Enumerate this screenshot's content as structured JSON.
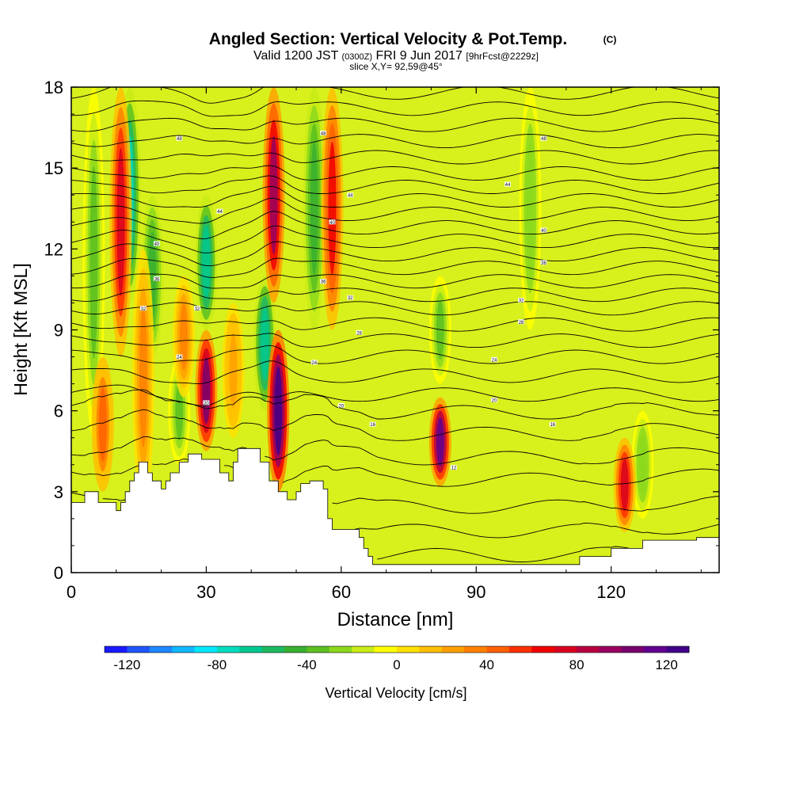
{
  "chart_data": {
    "type": "heatmap",
    "title": "Angled Section: Vertical Velocity & Pot.Temp.",
    "title_unit": "(C)",
    "subtitle": {
      "valid": "Valid 1200 JST",
      "zulu": "(0300Z)",
      "date": "FRI 9 Jun 2017",
      "forecast": "[9hrFcst@2229z]"
    },
    "slice_text": "slice X,Y= 92,59@45°",
    "xlabel": "Distance [nm]",
    "ylabel": "Height [Kft MSL]",
    "xlim": [
      0,
      144
    ],
    "ylim": [
      0,
      18
    ],
    "x_ticks": [
      0,
      30,
      60,
      90,
      120
    ],
    "x_tick_labels": [
      "0",
      "30",
      "60",
      "90",
      "120"
    ],
    "y_ticks": [
      0,
      3,
      6,
      9,
      12,
      15,
      18
    ],
    "y_tick_labels": [
      "0",
      "3",
      "6",
      "9",
      "12",
      "15",
      "18"
    ],
    "colorbar": {
      "label": "Vertical Velocity [cm/s]",
      "min": -130,
      "max": 130,
      "tick_values": [
        -120,
        -80,
        -40,
        0,
        40,
        80,
        120
      ],
      "tick_labels": [
        "-120",
        "-80",
        "-40",
        "0",
        "40",
        "80",
        "120"
      ],
      "colors": [
        "#1a1aff",
        "#2055ff",
        "#1e88ff",
        "#10b8ff",
        "#00e8ff",
        "#00dcc0",
        "#00c890",
        "#1eb860",
        "#38b030",
        "#5cc020",
        "#8cd81c",
        "#c8ec18",
        "#ffff00",
        "#ffe000",
        "#ffc000",
        "#ffa000",
        "#ff8000",
        "#ff6000",
        "#ff3000",
        "#f00000",
        "#d80020",
        "#b80040",
        "#980060",
        "#780070",
        "#600090",
        "#40008a"
      ]
    },
    "terrain_kft": [
      [
        0,
        2.6
      ],
      [
        3,
        2.6
      ],
      [
        3,
        3.0
      ],
      [
        6,
        3.0
      ],
      [
        6,
        2.6
      ],
      [
        10,
        2.6
      ],
      [
        10,
        2.3
      ],
      [
        11,
        2.3
      ],
      [
        11,
        2.6
      ],
      [
        12,
        2.6
      ],
      [
        12,
        3.0
      ],
      [
        13,
        3.0
      ],
      [
        13,
        3.4
      ],
      [
        14,
        3.4
      ],
      [
        14,
        3.7
      ],
      [
        15,
        3.7
      ],
      [
        15,
        4.1
      ],
      [
        17,
        4.1
      ],
      [
        17,
        3.7
      ],
      [
        18,
        3.7
      ],
      [
        18,
        3.4
      ],
      [
        20,
        3.4
      ],
      [
        20,
        3.1
      ],
      [
        21,
        3.1
      ],
      [
        21,
        3.4
      ],
      [
        22,
        3.4
      ],
      [
        22,
        3.7
      ],
      [
        24,
        3.7
      ],
      [
        24,
        4.1
      ],
      [
        26,
        4.1
      ],
      [
        26,
        4.4
      ],
      [
        29,
        4.4
      ],
      [
        29,
        4.2
      ],
      [
        33,
        4.2
      ],
      [
        33,
        3.7
      ],
      [
        35,
        3.7
      ],
      [
        35,
        3.4
      ],
      [
        36,
        3.4
      ],
      [
        36,
        4.1
      ],
      [
        37,
        4.1
      ],
      [
        37,
        4.6
      ],
      [
        42,
        4.6
      ],
      [
        42,
        4.1
      ],
      [
        44,
        4.1
      ],
      [
        44,
        3.4
      ],
      [
        46,
        3.4
      ],
      [
        46,
        3.0
      ],
      [
        48,
        3.0
      ],
      [
        48,
        2.7
      ],
      [
        50,
        2.7
      ],
      [
        50,
        3.0
      ],
      [
        51,
        3.0
      ],
      [
        51,
        3.3
      ],
      [
        53,
        3.3
      ],
      [
        53,
        3.4
      ],
      [
        56,
        3.4
      ],
      [
        56,
        3.1
      ],
      [
        57,
        3.1
      ],
      [
        57,
        2.0
      ],
      [
        58,
        2.0
      ],
      [
        58,
        1.6
      ],
      [
        64,
        1.6
      ],
      [
        64,
        1.3
      ],
      [
        65,
        1.3
      ],
      [
        65,
        0.9
      ],
      [
        66,
        0.9
      ],
      [
        66,
        0.6
      ],
      [
        67,
        0.6
      ],
      [
        67,
        0.3
      ],
      [
        113,
        0.3
      ],
      [
        113,
        0.6
      ],
      [
        120,
        0.6
      ],
      [
        120,
        0.9
      ],
      [
        127,
        0.9
      ],
      [
        127,
        1.2
      ],
      [
        139,
        1.2
      ],
      [
        139,
        1.3
      ],
      [
        144,
        1.3
      ]
    ],
    "updrafts": [
      {
        "x": 11,
        "z0": 8,
        "z1": 18,
        "value": 70
      },
      {
        "x": 16,
        "z0": 2.5,
        "z1": 12,
        "value": 30
      },
      {
        "x": 25,
        "z0": 6.5,
        "z1": 11,
        "value": 30
      },
      {
        "x": 30,
        "z0": 4.5,
        "z1": 9,
        "value": 100
      },
      {
        "x": 46,
        "z0": 3.0,
        "z1": 9,
        "value": 130
      },
      {
        "x": 45,
        "z0": 10,
        "z1": 18,
        "value": 90
      },
      {
        "x": 58,
        "z0": 9,
        "z1": 18,
        "value": 60
      },
      {
        "x": 82,
        "z0": 3.2,
        "z1": 6.5,
        "value": 110
      },
      {
        "x": 123,
        "z0": 1.5,
        "z1": 5,
        "value": 70
      },
      {
        "x": 7,
        "z0": 3,
        "z1": 8,
        "value": 40
      },
      {
        "x": 36,
        "z0": 5,
        "z1": 10,
        "value": 25
      }
    ],
    "downdrafts": [
      {
        "x": 5,
        "z0": 5,
        "z1": 18,
        "value": -40
      },
      {
        "x": 13,
        "z0": 10,
        "z1": 18,
        "value": -80
      },
      {
        "x": 18,
        "z0": 8,
        "z1": 14,
        "value": -50
      },
      {
        "x": 30,
        "z0": 9,
        "z1": 14,
        "value": -70
      },
      {
        "x": 43,
        "z0": 6,
        "z1": 11,
        "value": -70
      },
      {
        "x": 54,
        "z0": 9,
        "z1": 18,
        "value": -50
      },
      {
        "x": 82,
        "z0": 7,
        "z1": 11,
        "value": -40
      },
      {
        "x": 102,
        "z0": 9,
        "z1": 18,
        "value": -30
      },
      {
        "x": 127,
        "z0": 2,
        "z1": 6,
        "value": -30
      },
      {
        "x": 24,
        "z0": 4,
        "z1": 8,
        "value": -40
      }
    ],
    "isentrope_base_kft": [
      0.6,
      1.5,
      2.4,
      3.4,
      4.2,
      5.1,
      5.9,
      6.6,
      7.3,
      8.0,
      8.6,
      9.2,
      9.8,
      10.3,
      10.8,
      11.3,
      11.8,
      12.3,
      12.8,
      13.3,
      13.8,
      14.3,
      14.8,
      15.4,
      16.0,
      16.6,
      17.2,
      17.8
    ],
    "isentrope_labels": [
      {
        "x": 24,
        "z": 16.1,
        "text": "48"
      },
      {
        "x": 56,
        "z": 16.3,
        "text": "48"
      },
      {
        "x": 105,
        "z": 16.1,
        "text": "48"
      },
      {
        "x": 62,
        "z": 14.0,
        "text": "44"
      },
      {
        "x": 33,
        "z": 13.4,
        "text": "44"
      },
      {
        "x": 97,
        "z": 14.4,
        "text": "44"
      },
      {
        "x": 58,
        "z": 13.0,
        "text": "40"
      },
      {
        "x": 105,
        "z": 12.7,
        "text": "40"
      },
      {
        "x": 19,
        "z": 12.2,
        "text": "40"
      },
      {
        "x": 105,
        "z": 11.5,
        "text": "36"
      },
      {
        "x": 19,
        "z": 10.9,
        "text": "36"
      },
      {
        "x": 56,
        "z": 10.8,
        "text": "36"
      },
      {
        "x": 16,
        "z": 9.8,
        "text": "32"
      },
      {
        "x": 28,
        "z": 9.8,
        "text": "32"
      },
      {
        "x": 62,
        "z": 10.2,
        "text": "32"
      },
      {
        "x": 100,
        "z": 10.1,
        "text": "32"
      },
      {
        "x": 64,
        "z": 8.9,
        "text": "28"
      },
      {
        "x": 100,
        "z": 9.3,
        "text": "28"
      },
      {
        "x": 24,
        "z": 8.0,
        "text": "24"
      },
      {
        "x": 54,
        "z": 7.8,
        "text": "24"
      },
      {
        "x": 94,
        "z": 7.9,
        "text": "24"
      },
      {
        "x": 30,
        "z": 6.3,
        "text": "20"
      },
      {
        "x": 60,
        "z": 6.2,
        "text": "20"
      },
      {
        "x": 94,
        "z": 6.4,
        "text": "20"
      },
      {
        "x": 67,
        "z": 5.5,
        "text": "16"
      },
      {
        "x": 107,
        "z": 5.5,
        "text": "16"
      },
      {
        "x": 85,
        "z": 3.9,
        "text": "12"
      }
    ]
  }
}
